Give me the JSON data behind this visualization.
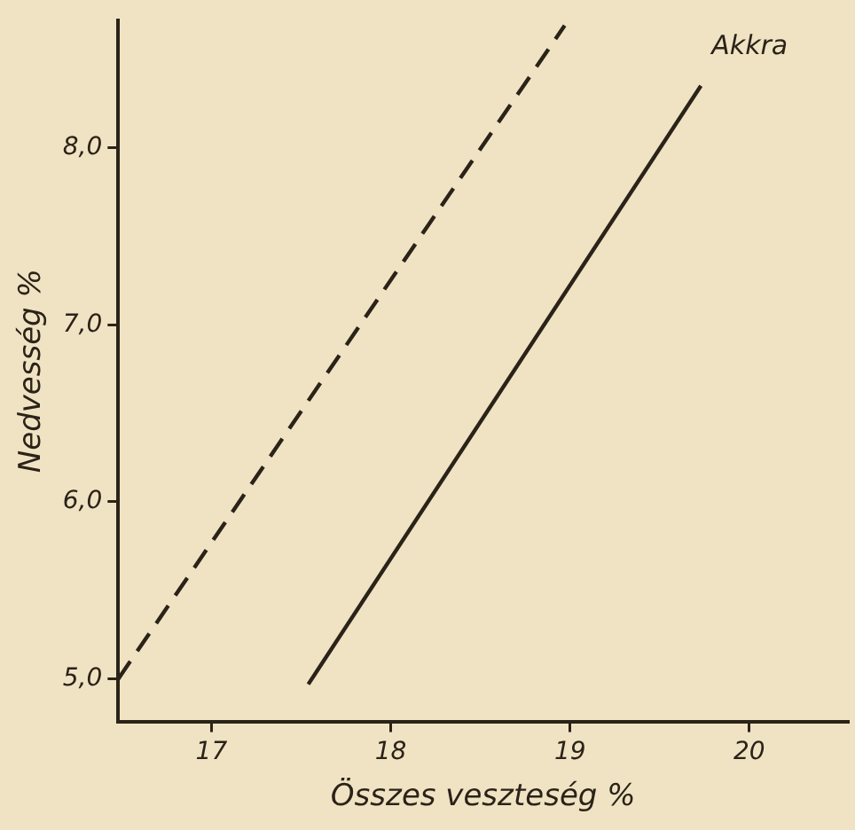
{
  "chart_data": {
    "type": "line",
    "xlabel": "Összes veszteség %",
    "ylabel": "Nedvesség %",
    "xlim": [
      16.48,
      20.55
    ],
    "ylim": [
      4.76,
      8.72
    ],
    "xticks": [
      17,
      18,
      19,
      20
    ],
    "yticks": [
      {
        "value": 5,
        "label": "5,0"
      },
      {
        "value": 6,
        "label": "6,0"
      },
      {
        "value": 7,
        "label": "7,0"
      },
      {
        "value": 8,
        "label": "8,0"
      }
    ],
    "series": [
      {
        "color": "#2b2218",
        "line_style": "dashed",
        "x": [
          16.48,
          18.97
        ],
        "values": [
          5.0,
          8.69
        ]
      },
      {
        "name": "Akkra",
        "color": "#2b2218",
        "line_style": "solid",
        "x": [
          17.54,
          19.73
        ],
        "values": [
          4.97,
          8.35
        ]
      }
    ],
    "grid": false,
    "legend": false,
    "marker": "none"
  }
}
